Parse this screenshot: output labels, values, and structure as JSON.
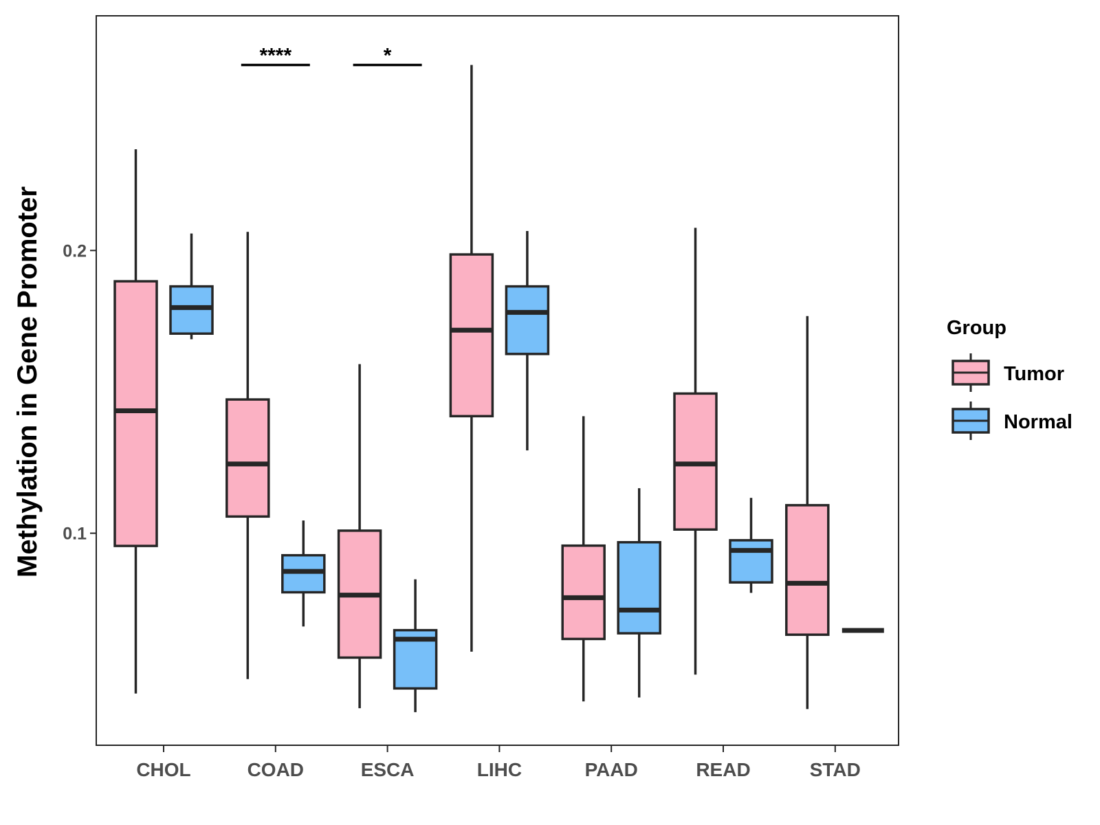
{
  "chart_data": {
    "type": "boxplot",
    "title": "",
    "xlabel": "",
    "ylabel": "Methylation in Gene Promoter",
    "ylim": [
      0.025,
      0.283
    ],
    "yticks": [
      0.1,
      0.2
    ],
    "ytick_labels": [
      "0.1",
      "0.2"
    ],
    "categories": [
      "CHOL",
      "COAD",
      "ESCA",
      "LIHC",
      "PAAD",
      "READ",
      "STAD"
    ],
    "legend": {
      "title": "Group",
      "position": "right",
      "entries": [
        "Tumor",
        "Normal"
      ]
    },
    "colors": {
      "Tumor": "#FBB1C3",
      "Normal": "#77BFF9",
      "stroke": "#262626"
    },
    "series": [
      {
        "name": "Tumor",
        "boxes": [
          {
            "min": 0.0433,
            "q1": 0.0955,
            "median": 0.1433,
            "q3": 0.1891,
            "max": 0.2358
          },
          {
            "min": 0.0484,
            "q1": 0.1059,
            "median": 0.1245,
            "q3": 0.1473,
            "max": 0.2066
          },
          {
            "min": 0.0381,
            "q1": 0.056,
            "median": 0.0781,
            "q3": 0.1009,
            "max": 0.1598
          },
          {
            "min": 0.0581,
            "q1": 0.1414,
            "median": 0.1718,
            "q3": 0.1986,
            "max": 0.2656
          },
          {
            "min": 0.0405,
            "q1": 0.0626,
            "median": 0.0772,
            "q3": 0.0956,
            "max": 0.1414
          },
          {
            "min": 0.05,
            "q1": 0.1013,
            "median": 0.1245,
            "q3": 0.1494,
            "max": 0.208
          },
          {
            "min": 0.0378,
            "q1": 0.0641,
            "median": 0.0823,
            "q3": 0.1099,
            "max": 0.1768
          }
        ]
      },
      {
        "name": "Normal",
        "boxes": [
          {
            "min": 0.1686,
            "q1": 0.1706,
            "median": 0.1798,
            "q3": 0.1873,
            "max": 0.206
          },
          {
            "min": 0.067,
            "q1": 0.0791,
            "median": 0.0865,
            "q3": 0.0922,
            "max": 0.1045
          },
          {
            "min": 0.0367,
            "q1": 0.0451,
            "median": 0.0625,
            "q3": 0.0657,
            "max": 0.0837
          },
          {
            "min": 0.1293,
            "q1": 0.1634,
            "median": 0.1781,
            "q3": 0.1873,
            "max": 0.2069
          },
          {
            "min": 0.0419,
            "q1": 0.0646,
            "median": 0.0728,
            "q3": 0.0968,
            "max": 0.1159
          },
          {
            "min": 0.0789,
            "q1": 0.0826,
            "median": 0.0939,
            "q3": 0.0975,
            "max": 0.1125
          },
          {
            "min": 0.0656,
            "q1": 0.0656,
            "median": 0.0656,
            "q3": 0.0656,
            "max": 0.0656
          }
        ]
      }
    ],
    "annotations": [
      {
        "category": "COAD",
        "label": "****",
        "y": 0.2656
      },
      {
        "category": "ESCA",
        "label": "*",
        "y": 0.2656
      }
    ]
  }
}
